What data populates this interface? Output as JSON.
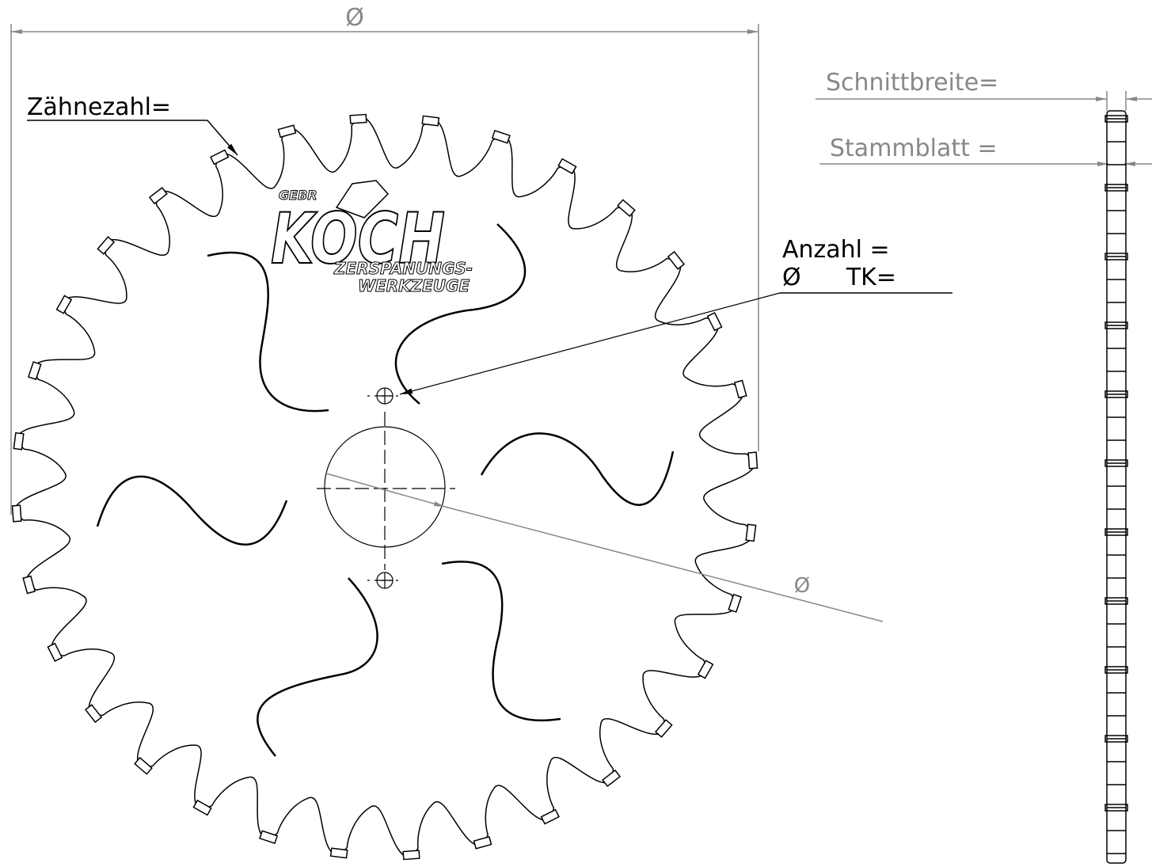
{
  "drawing": {
    "diameter_label": "Ø",
    "teeth_label": "Zähnezahl=",
    "kerf_label": "Schnittbreite=",
    "plate_label": "Stammblatt =",
    "holes_count_label": "Anzahl =",
    "pitch_circle_label": "Ø      TK=",
    "bore_label": "Ø"
  },
  "logo": {
    "line1": "GEBR",
    "line2": "KOCH",
    "line3": "ZERSPANUNGS-",
    "line4": "WERKZEUGE"
  }
}
